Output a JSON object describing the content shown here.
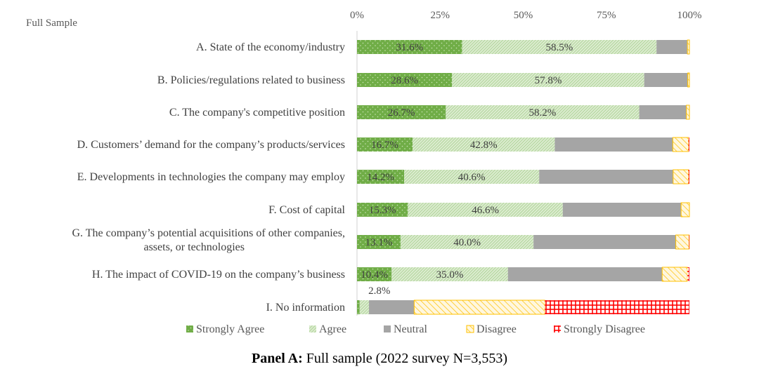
{
  "caption": {
    "bold": "Panel A:",
    "rest": " Full sample (2022 survey N=3,553)"
  },
  "chart_data": {
    "type": "bar",
    "orientation": "horizontal-stacked-100",
    "sample_label": "Full Sample",
    "x_ticks": [
      "0%",
      "25%",
      "50%",
      "75%",
      "100%"
    ],
    "xlim": [
      0,
      100
    ],
    "legend_position": "bottom",
    "categories": [
      [
        "A. State of the economy/industry"
      ],
      [
        "B. Policies/regulations related to business"
      ],
      [
        "C. The company's competitive position"
      ],
      [
        "D. Customers’ demand for the company’s products/services"
      ],
      [
        "E. Developments in technologies the company may employ"
      ],
      [
        "F. Cost of capital"
      ],
      [
        "G. The company’s potential acquisitions of other companies,",
        "assets, or technologies"
      ],
      [
        "H. The impact of COVID-19 on the company’s business"
      ],
      [
        "I. No information"
      ]
    ],
    "series": [
      {
        "name": "Strongly Agree",
        "color": "#70ad47",
        "values": [
          31.6,
          28.6,
          26.7,
          16.7,
          14.2,
          15.3,
          13.1,
          10.4,
          0.8
        ],
        "labels": [
          "31.6%",
          "28.6%",
          "26.7%",
          "16.7%",
          "14.2%",
          "15.3%",
          "13.1%",
          "10.4%",
          ""
        ]
      },
      {
        "name": "Agree",
        "color": "#a9d18e",
        "values": [
          58.5,
          57.8,
          58.2,
          42.8,
          40.6,
          46.6,
          40.0,
          35.0,
          2.8
        ],
        "labels": [
          "58.5%",
          "57.8%",
          "58.2%",
          "42.8%",
          "40.6%",
          "46.6%",
          "40.0%",
          "35.0%",
          "2.8%"
        ]
      },
      {
        "name": "Neutral",
        "color": "#a5a5a5",
        "values": [
          9.3,
          13.1,
          14.2,
          35.5,
          40.3,
          35.6,
          42.8,
          46.4,
          13.6
        ]
      },
      {
        "name": "Disagree",
        "color": "#ffc000",
        "values": [
          0.6,
          0.5,
          0.9,
          4.7,
          4.6,
          2.5,
          4.0,
          7.6,
          39.3
        ]
      },
      {
        "name": "Strongly Disagree",
        "color": "#ff0000",
        "values": [
          0.0,
          0.0,
          0.0,
          0.3,
          0.3,
          0.0,
          0.1,
          0.6,
          43.5
        ]
      }
    ]
  }
}
